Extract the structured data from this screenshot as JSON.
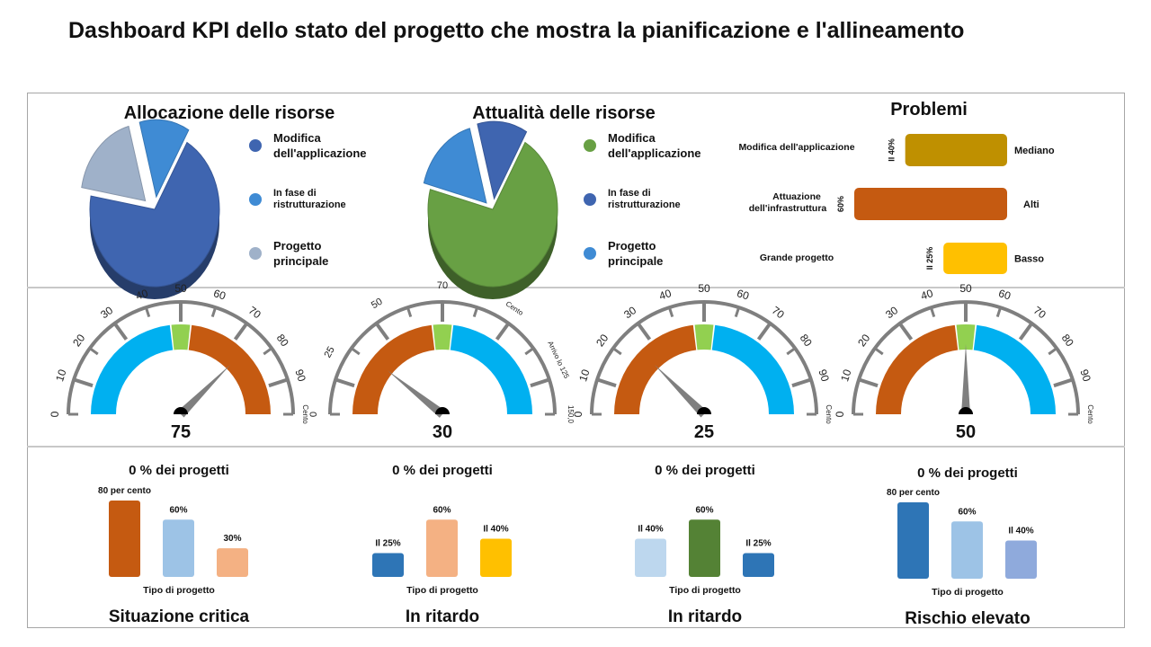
{
  "title": "Dashboard KPI dello stato del progetto che mostra la pianificazione e l'allineamento",
  "colors": {
    "blue_dark": "#3f65b0",
    "blue_mid": "#3f8bd4",
    "grey_blue": "#9fb1c9",
    "green": "#68a044",
    "orange": "#c55a11",
    "gold": "#bf9000",
    "yellow": "#ffc000",
    "cyan": "#00b0f0",
    "lightgreen": "#92d050",
    "peach": "#f4b183",
    "light_blue": "#9dc3e6",
    "lighter_blue": "#bdd7ee",
    "slate": "#2e75b6",
    "periwinkle": "#8faadc",
    "dark_green": "#548235"
  },
  "pies": [
    {
      "title": "Allocazione delle risorse",
      "legend": [
        {
          "label": "Modifica dell'applicazione",
          "color": "#3f65b0"
        },
        {
          "label": "In fase di ristrutturazione",
          "color": "#3f8bd4"
        },
        {
          "label": "Progetto principale",
          "color": "#9fb1c9"
        }
      ]
    },
    {
      "title": "Attualità delle risorse",
      "legend": [
        {
          "label": "Modifica dell'applicazione",
          "color": "#68a044"
        },
        {
          "label": "In fase di ristrutturazione",
          "color": "#3f65b0"
        },
        {
          "label": "Progetto principale",
          "color": "#3f8bd4"
        }
      ]
    }
  ],
  "problems": {
    "title": "Problemi",
    "rows": [
      {
        "name": "Modifica dell'applicazione",
        "pct": "Il 40%",
        "status": "Mediano",
        "color": "#bf9000"
      },
      {
        "name": "Attuazione dell'infrastruttura",
        "pct": "60%",
        "status": "Alti",
        "color": "#c55a11"
      },
      {
        "name": "Grande progetto",
        "pct": "Il 25%",
        "status": "Basso",
        "color": "#ffc000"
      }
    ]
  },
  "gauges": [
    {
      "value_label": "75",
      "value": 75,
      "ticks": [
        "0",
        "10",
        "20",
        "30",
        "40",
        "50",
        "60",
        "70",
        "80",
        "90",
        "Cento"
      ],
      "left": [
        "orange"
      ]
    },
    {
      "value_label": "30",
      "value": 30,
      "ticks": [
        "0",
        "25",
        "50",
        "70",
        "Cento",
        "Arrivo lo 125",
        "150,0"
      ]
    },
    {
      "value_label": "25",
      "value": 25,
      "ticks": [
        "0",
        "10",
        "20",
        "30",
        "40",
        "50",
        "60",
        "70",
        "80",
        "90",
        "Cento"
      ]
    },
    {
      "value_label": "50",
      "value": 50,
      "ticks": [
        "0",
        "10",
        "20",
        "30",
        "40",
        "50",
        "60",
        "70",
        "80",
        "90",
        "Cento"
      ]
    }
  ],
  "bars": [
    {
      "heading": "0 % dei progetti",
      "xlabel": "Tipo di progetto",
      "footer": "Situazione critica",
      "data": [
        {
          "label": "80 per cento",
          "value": 80,
          "color": "#c55a11"
        },
        {
          "label": "60%",
          "value": 60,
          "color": "#9dc3e6"
        },
        {
          "label": "30%",
          "value": 30,
          "color": "#f4b183"
        }
      ]
    },
    {
      "heading": "0 % dei progetti",
      "xlabel": "Tipo di progetto",
      "footer": "In ritardo",
      "data": [
        {
          "label": "Il 25%",
          "value": 25,
          "color": "#2e75b6"
        },
        {
          "label": "60%",
          "value": 60,
          "color": "#f4b183"
        },
        {
          "label": "Il 40%",
          "value": 40,
          "color": "#ffc000"
        }
      ]
    },
    {
      "heading": "0 % dei progetti",
      "xlabel": "Tipo di progetto",
      "footer": "In ritardo",
      "data": [
        {
          "label": "Il 40%",
          "value": 40,
          "color": "#bdd7ee"
        },
        {
          "label": "60%",
          "value": 60,
          "color": "#548235"
        },
        {
          "label": "Il 25%",
          "value": 25,
          "color": "#2e75b6"
        }
      ]
    },
    {
      "heading": "0 % dei progetti",
      "xlabel": "Tipo di progetto",
      "footer": "Rischio elevato",
      "data": [
        {
          "label": "80 per cento",
          "value": 80,
          "color": "#2e75b6"
        },
        {
          "label": "60%",
          "value": 60,
          "color": "#9dc3e6"
        },
        {
          "label": "Il 40%",
          "value": 40,
          "color": "#8faadc"
        }
      ]
    }
  ],
  "chart_data": [
    {
      "type": "pie",
      "title": "Allocazione delle risorse",
      "categories": [
        "Modifica dell'applicazione",
        "In fase di ristrutturazione",
        "Progetto principale"
      ],
      "values": [
        70,
        15,
        15
      ]
    },
    {
      "type": "pie",
      "title": "Attualità delle risorse",
      "categories": [
        "Modifica dell'applicazione",
        "In fase di ristrutturazione",
        "Progetto principale"
      ],
      "values": [
        65,
        15,
        20
      ]
    },
    {
      "type": "bar",
      "title": "Problemi",
      "categories": [
        "Modifica dell'applicazione",
        "Attuazione dell'infrastruttura",
        "Grande progetto"
      ],
      "values": [
        40,
        60,
        25
      ]
    },
    {
      "type": "bar",
      "title": "0 % dei progetti",
      "xlabel": "Tipo di progetto",
      "categories": [
        "80 per cento",
        "60%",
        "30%"
      ],
      "values": [
        80,
        60,
        30
      ]
    },
    {
      "type": "bar",
      "title": "0 % dei progetti",
      "xlabel": "Tipo di progetto",
      "categories": [
        "Il 25%",
        "60%",
        "Il 40%"
      ],
      "values": [
        25,
        60,
        40
      ]
    },
    {
      "type": "bar",
      "title": "0 % dei progetti",
      "xlabel": "Tipo di progetto",
      "categories": [
        "Il 40%",
        "60%",
        "Il 25%"
      ],
      "values": [
        40,
        60,
        25
      ]
    },
    {
      "type": "bar",
      "title": "0 % dei progetti",
      "xlabel": "Tipo di progetto",
      "categories": [
        "80 per cento",
        "60%",
        "Il 40%"
      ],
      "values": [
        80,
        60,
        40
      ]
    }
  ]
}
